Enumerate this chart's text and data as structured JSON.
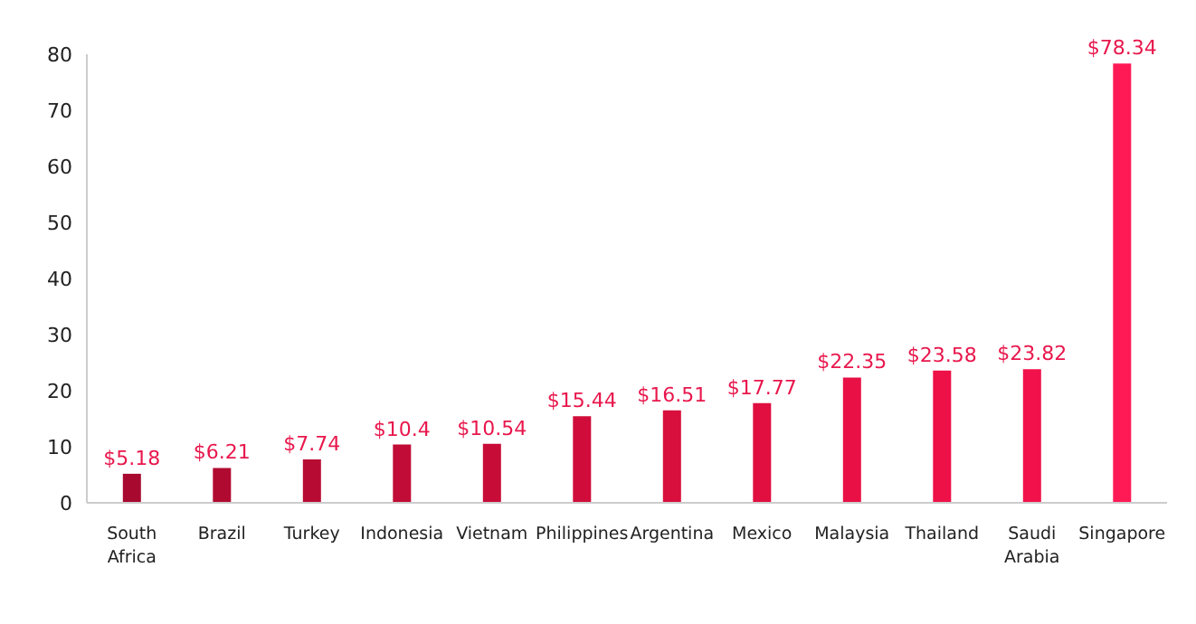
{
  "chart_data": {
    "type": "bar",
    "categories": [
      "South Africa",
      "Brazil",
      "Turkey",
      "Indonesia",
      "Vietnam",
      "Philippines",
      "Argentina",
      "Mexico",
      "Malaysia",
      "Thailand",
      "Saudi Arabia",
      "Singapore"
    ],
    "values": [
      5.18,
      6.21,
      7.74,
      10.4,
      10.54,
      15.44,
      16.51,
      17.77,
      22.35,
      23.58,
      23.82,
      78.34
    ],
    "value_labels": [
      "$5.18",
      "$6.21",
      "$7.74",
      "$10.4",
      "$10.54",
      "$15.44",
      "$16.51",
      "$17.77",
      "$22.35",
      "$23.58",
      "$23.82",
      "$78.34"
    ],
    "colors": [
      "#a8092f",
      "#b00a31",
      "#b80b33",
      "#c00c36",
      "#c80c38",
      "#d00d3a",
      "#d80e3d",
      "#e00f40",
      "#e81045",
      "#ee1148",
      "#f2124b",
      "#ff1a55"
    ],
    "ylim": [
      0,
      80
    ],
    "yticks": [
      0,
      10,
      20,
      30,
      40,
      50,
      60,
      70,
      80
    ],
    "grid": false
  }
}
